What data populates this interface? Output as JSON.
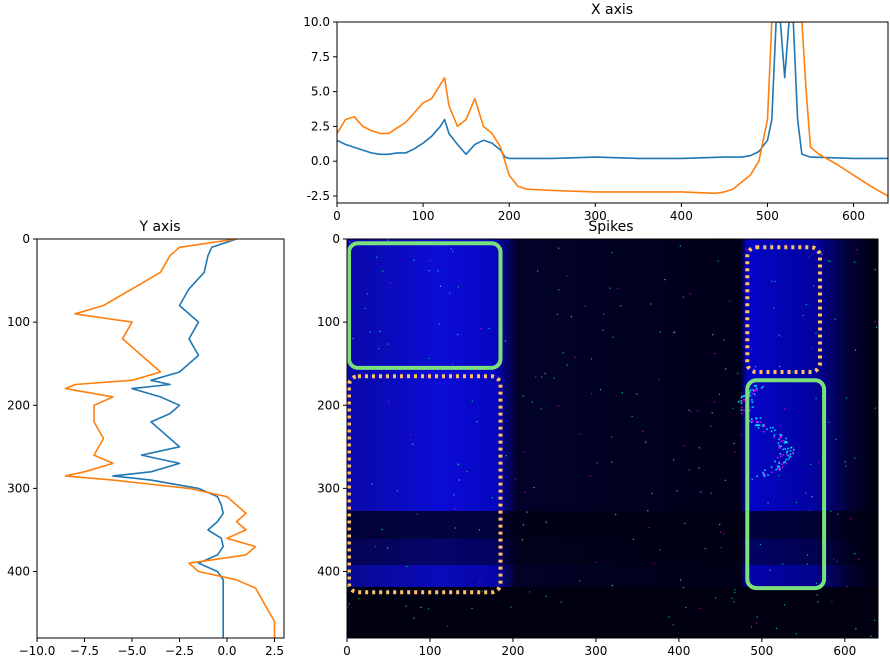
{
  "colors": {
    "series_blue": "#1f77b4",
    "series_orange": "#ff7f0e",
    "roi_solid": "#7be07b",
    "roi_dotted": "#ffbf66",
    "heatmap_base": "#000010",
    "heatmap_bright": "#0000ff"
  },
  "chart_data": [
    {
      "id": "x_axis_projection",
      "type": "line",
      "title": "X axis",
      "xlim": [
        0,
        640
      ],
      "ylim": [
        -3,
        10
      ],
      "x_ticks": [
        "0",
        "100",
        "200",
        "300",
        "400",
        "500",
        "600"
      ],
      "y_ticks": [
        "-2.5",
        "0.0",
        "2.5",
        "5.0",
        "7.5",
        "10.0"
      ],
      "series": [
        {
          "color": "#1f77b4",
          "x": [
            0,
            10,
            20,
            30,
            40,
            50,
            60,
            70,
            80,
            90,
            100,
            110,
            120,
            125,
            130,
            140,
            150,
            160,
            170,
            180,
            190,
            195,
            200,
            250,
            300,
            350,
            400,
            450,
            470,
            480,
            490,
            500,
            505,
            510,
            515,
            520,
            525,
            530,
            535,
            540,
            550,
            600,
            640
          ],
          "y": [
            1.5,
            1.2,
            1.0,
            0.8,
            0.6,
            0.5,
            0.5,
            0.6,
            0.6,
            0.9,
            1.3,
            1.8,
            2.5,
            3.0,
            2.0,
            1.2,
            0.5,
            1.2,
            1.5,
            1.3,
            0.8,
            0.3,
            0.2,
            0.2,
            0.3,
            0.2,
            0.2,
            0.3,
            0.3,
            0.4,
            0.7,
            1.5,
            3.0,
            10.0,
            10.0,
            6.0,
            10.0,
            10.0,
            3.0,
            0.5,
            0.3,
            0.2,
            0.2
          ]
        },
        {
          "color": "#ff7f0e",
          "x": [
            0,
            10,
            20,
            30,
            40,
            50,
            60,
            70,
            80,
            90,
            100,
            110,
            120,
            125,
            130,
            140,
            150,
            160,
            165,
            170,
            180,
            190,
            200,
            210,
            220,
            250,
            300,
            350,
            400,
            440,
            450,
            460,
            470,
            480,
            490,
            500,
            505,
            510,
            520,
            530,
            540,
            545,
            550,
            560,
            580,
            600,
            620,
            640
          ],
          "y": [
            2.0,
            3.0,
            3.2,
            2.5,
            2.2,
            2.0,
            2.0,
            2.4,
            2.8,
            3.5,
            4.2,
            4.5,
            5.5,
            6.0,
            4.0,
            2.5,
            3.0,
            4.5,
            3.5,
            2.5,
            2.0,
            1.0,
            -1.0,
            -1.8,
            -2.0,
            -2.1,
            -2.2,
            -2.2,
            -2.2,
            -2.3,
            -2.2,
            -2.0,
            -1.5,
            -1.0,
            0.0,
            3.0,
            10.0,
            10.0,
            10.0,
            10.0,
            10.0,
            5.0,
            1.0,
            0.5,
            -0.2,
            -1.0,
            -1.8,
            -2.5
          ]
        }
      ]
    },
    {
      "id": "y_axis_projection",
      "type": "line",
      "title": "Y axis",
      "xlim": [
        -10,
        3
      ],
      "ylim": [
        480,
        0
      ],
      "x_ticks": [
        "−10.0",
        "−7.5",
        "−5.0",
        "−2.5",
        "0.0",
        "2.5"
      ],
      "y_ticks": [
        "0",
        "100",
        "200",
        "300",
        "400"
      ],
      "series": [
        {
          "color": "#1f77b4",
          "row": [
            0,
            10,
            20,
            40,
            60,
            80,
            100,
            120,
            140,
            160,
            170,
            175,
            180,
            190,
            200,
            210,
            220,
            230,
            240,
            250,
            260,
            270,
            280,
            285,
            290,
            300,
            310,
            320,
            330,
            340,
            350,
            360,
            370,
            380,
            390,
            400,
            410,
            420,
            440,
            460,
            480
          ],
          "value": [
            0.5,
            -0.8,
            -1.0,
            -1.2,
            -2.0,
            -2.5,
            -1.5,
            -2.0,
            -1.5,
            -2.5,
            -4.0,
            -3.0,
            -5.0,
            -3.5,
            -2.5,
            -3.0,
            -4.0,
            -3.5,
            -3.0,
            -2.5,
            -4.5,
            -2.5,
            -4.0,
            -6.0,
            -4.0,
            -1.5,
            -0.5,
            -0.3,
            -0.2,
            -0.5,
            -1.0,
            -0.3,
            -0.2,
            -0.5,
            -1.5,
            -0.5,
            -0.2,
            -0.2,
            -0.2,
            -0.2,
            -0.2
          ]
        },
        {
          "color": "#ff7f0e",
          "row": [
            0,
            10,
            20,
            40,
            60,
            80,
            90,
            100,
            120,
            140,
            160,
            170,
            175,
            180,
            190,
            200,
            220,
            240,
            260,
            270,
            280,
            285,
            290,
            300,
            310,
            320,
            330,
            340,
            350,
            360,
            370,
            380,
            390,
            400,
            410,
            420,
            440,
            460,
            480
          ],
          "value": [
            0.5,
            -2.5,
            -3.0,
            -3.5,
            -5.0,
            -6.5,
            -8.0,
            -5.0,
            -5.5,
            -4.5,
            -3.5,
            -5.0,
            -8.0,
            -8.5,
            -6.0,
            -7.0,
            -7.0,
            -6.5,
            -7.0,
            -6.0,
            -7.5,
            -8.5,
            -6.0,
            -2.0,
            0.0,
            0.5,
            1.0,
            0.5,
            1.0,
            0.0,
            1.5,
            1.0,
            -2.0,
            -1.5,
            0.5,
            1.5,
            2.0,
            2.5,
            2.5
          ]
        }
      ]
    },
    {
      "id": "spikes_heatmap",
      "type": "heatmap",
      "title": "Spikes",
      "xlim": [
        0,
        640
      ],
      "ylim": [
        480,
        0
      ],
      "x_ticks": [
        "0",
        "100",
        "200",
        "300",
        "400",
        "500",
        "600"
      ],
      "y_ticks": [
        "0",
        "100",
        "200",
        "300",
        "400"
      ],
      "rois": [
        {
          "style": "solid",
          "x": [
            0,
            185
          ],
          "y": [
            5,
            155
          ]
        },
        {
          "style": "dotted",
          "x": [
            0,
            185
          ],
          "y": [
            165,
            425
          ]
        },
        {
          "style": "dotted",
          "x": [
            480,
            570
          ],
          "y": [
            10,
            160
          ]
        },
        {
          "style": "solid",
          "x": [
            480,
            575
          ],
          "y": [
            170,
            420
          ]
        }
      ]
    }
  ]
}
